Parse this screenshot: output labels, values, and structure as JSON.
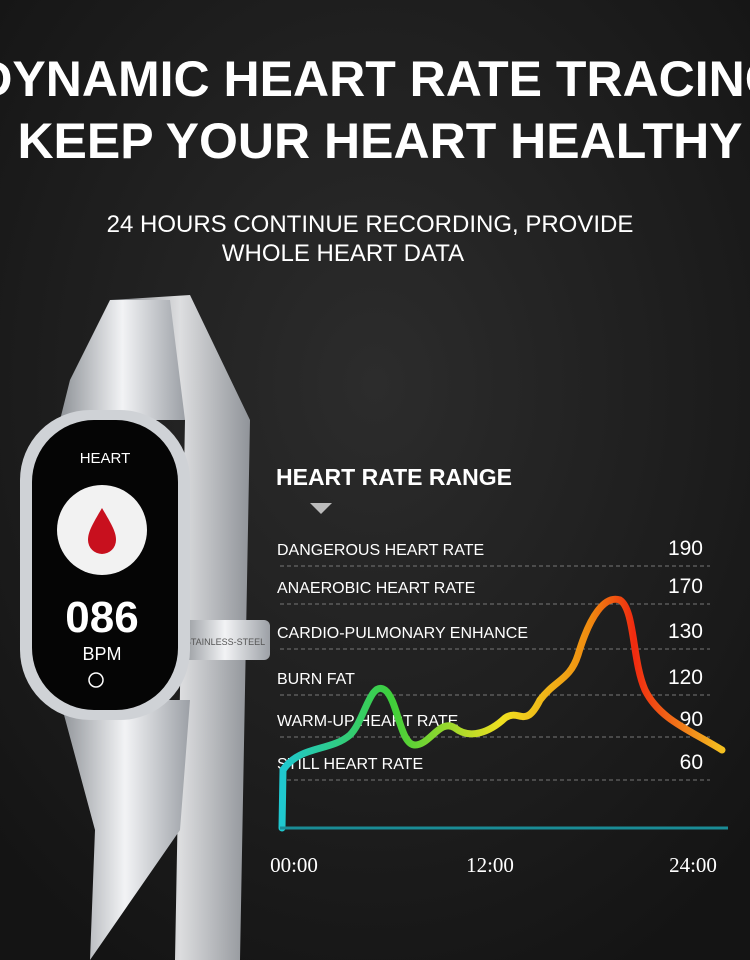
{
  "header": {
    "title_lines": [
      "DYNAMIC HEART RATE TRACING",
      "KEEP YOUR HEART HEALTHY"
    ],
    "subtitle_lines": [
      "24 HOURS CONTINUE RECORDING, PROVIDE",
      "WHOLE HEART DATA"
    ]
  },
  "watch": {
    "screen_label": "HEART",
    "reading": "086",
    "unit": "BPM",
    "band_text": "STAINLESS-STEEL"
  },
  "range": {
    "title": "HEART RATE RANGE",
    "zones": [
      {
        "label": "DANGEROUS HEART RATE",
        "value": 190
      },
      {
        "label": "ANAEROBIC HEART RATE",
        "value": 170
      },
      {
        "label": "CARDIO-PULMONARY ENHANCE",
        "value": 130
      },
      {
        "label": "BURN FAT",
        "value": 120
      },
      {
        "label": "WARM-UP HEART RATE",
        "value": 90
      },
      {
        "label": "STILL HEART RATE",
        "value": 60
      }
    ],
    "time_labels": [
      "00:00",
      "12:00",
      "24:00"
    ]
  }
}
